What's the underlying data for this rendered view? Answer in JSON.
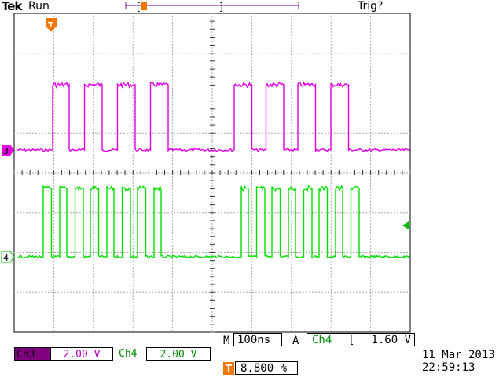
{
  "header": {
    "brand": "Tek",
    "acquisition_state": "Run",
    "trigger_status": "Trig?"
  },
  "channels": [
    {
      "id": "3",
      "marker_label": "3",
      "color": "#e000e0"
    },
    {
      "id": "4",
      "marker_label": "4",
      "color": "#00e000"
    }
  ],
  "trigger_marker_label": "T",
  "readouts": {
    "ch3_label": "Ch3",
    "ch3_scale": "2.00 V",
    "ch4_label": "Ch4",
    "ch4_scale": "2.00 V",
    "timebase_prefix": "M",
    "timebase": "100ns",
    "trigger_prefix": "A",
    "trigger_source": "Ch4",
    "trigger_slope": "⌊",
    "trigger_level": "1.60 V",
    "position_icon": "T",
    "position": "8.800 %",
    "date": "11 Mar  2013",
    "time": "22:59:13"
  },
  "colors": {
    "ch3": "#e000e0",
    "ch4": "#00e000",
    "trigger_marker": "#f07800",
    "ch3_badge": "#800080",
    "timebar": "#8000a0"
  }
}
